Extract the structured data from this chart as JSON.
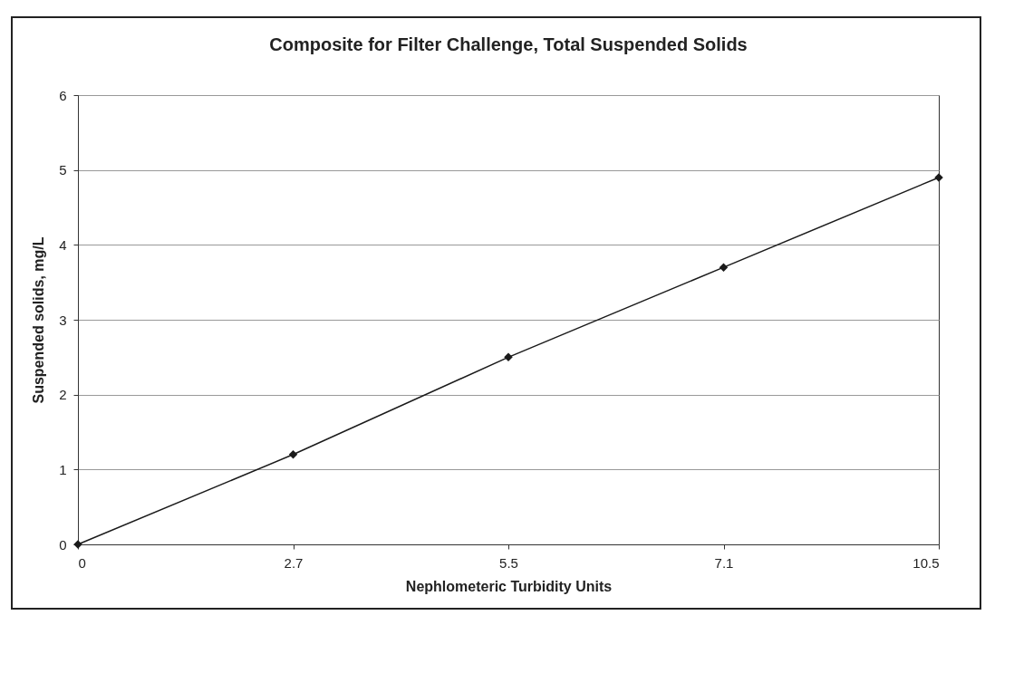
{
  "chart_data": {
    "type": "line",
    "title": "Composite for Filter Challenge, Total Suspended Solids",
    "xlabel": "Nephlometeric Turbidity Units",
    "ylabel": "Suspended solids, mg/L",
    "categories": [
      "0",
      "2.7",
      "5.5",
      "7.1",
      "10.5"
    ],
    "series": [
      {
        "color": "#1a1a1a",
        "values": [
          0,
          1.2,
          2.5,
          3.7,
          4.9
        ]
      }
    ],
    "ylim": [
      0,
      6
    ],
    "yticks": [
      0,
      1,
      2,
      3,
      4,
      5,
      6
    ],
    "grid": "y",
    "legend": false,
    "marker": "diamond",
    "line_style": "solid"
  }
}
